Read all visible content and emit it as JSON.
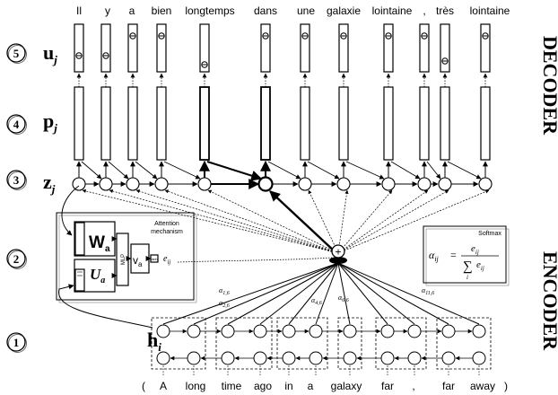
{
  "steps": [
    {
      "number": "5",
      "symbol": "u",
      "sub": "j"
    },
    {
      "number": "4",
      "symbol": "p",
      "sub": "j"
    },
    {
      "number": "3",
      "symbol": "z",
      "sub": "j"
    },
    {
      "number": "2"
    },
    {
      "number": "1",
      "symbol": "h",
      "sub": "i"
    }
  ],
  "section_labels": {
    "decoder": "DECODER",
    "encoder": "ENCODER"
  },
  "output_words": [
    "Il",
    "y",
    "a",
    "bien",
    "longtemps",
    "dans",
    "une",
    "galaxie",
    "lointaine",
    ",",
    "très",
    "lointaine"
  ],
  "input_words": [
    "(",
    "A",
    "long",
    "time",
    "ago",
    "in",
    "a",
    "galaxy",
    "far",
    ",",
    "far",
    "away",
    ")"
  ],
  "attention_box": {
    "title_line1": "Attention",
    "title_line2": "mechanism",
    "w_label": "W",
    "w_sub": "a",
    "u_label": "U",
    "u_sub": "a",
    "mlp_label": "MLP",
    "v_label": "v",
    "v_sub": "a",
    "tanh_label": "tanh",
    "energy_label": "e",
    "energy_sub": "ij"
  },
  "softmax_box": {
    "title": "Softmax",
    "lhs": "α",
    "lhs_sub": "ij",
    "eq": "=",
    "numerator": "e",
    "numerator_sub": "ij",
    "denominator": "e",
    "denominator_sub": "ij",
    "sum_index": "i"
  },
  "alpha_labels": [
    {
      "sym": "α",
      "sub": "1,6"
    },
    {
      "sym": "α",
      "sub": "2,6"
    },
    {
      "sym": "α",
      "sub": "4,6"
    },
    {
      "sym": "α",
      "sub": "6,6"
    },
    {
      "sym": "α",
      "sub": "11,6"
    }
  ],
  "combine_symbol": "+"
}
